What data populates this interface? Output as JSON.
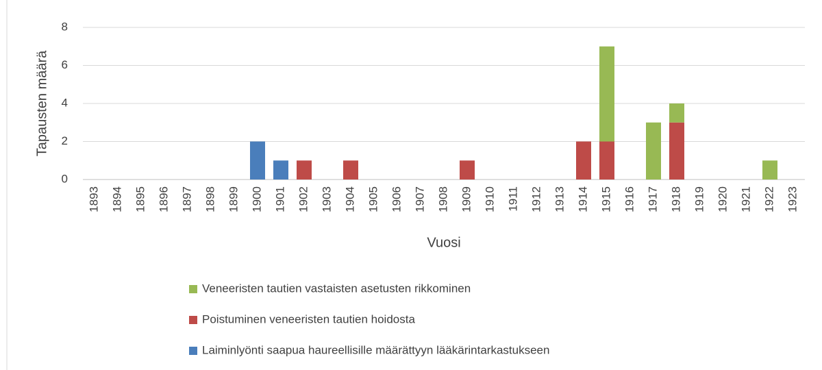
{
  "chart_data": {
    "type": "stacked_bar",
    "xlabel": "Vuosi",
    "ylabel": "Tapausten määrä",
    "categories": [
      "1893",
      "1894",
      "1895",
      "1896",
      "1897",
      "1898",
      "1899",
      "1900",
      "1901",
      "1902",
      "1903",
      "1904",
      "1905",
      "1906",
      "1907",
      "1908",
      "1909",
      "1910",
      "1911",
      "1912",
      "1913",
      "1914",
      "1915",
      "1916",
      "1917",
      "1918",
      "1919",
      "1920",
      "1921",
      "1922",
      "1923"
    ],
    "series": [
      {
        "name": "Laiminlyönti saapua haureellisille määrättyyn lääkärintarkastukseen",
        "color": "#4a7ebb",
        "values": [
          0,
          0,
          0,
          0,
          0,
          0,
          0,
          2,
          1,
          0,
          0,
          0,
          0,
          0,
          0,
          0,
          0,
          0,
          0,
          0,
          0,
          0,
          0,
          0,
          0,
          0,
          0,
          0,
          0,
          0,
          0
        ]
      },
      {
        "name": "Poistuminen veneeristen tautien hoidosta",
        "color": "#be4b48",
        "values": [
          0,
          0,
          0,
          0,
          0,
          0,
          0,
          0,
          0,
          1,
          0,
          1,
          0,
          0,
          0,
          0,
          1,
          0,
          0,
          0,
          0,
          2,
          2,
          0,
          0,
          3,
          0,
          0,
          0,
          0,
          0
        ]
      },
      {
        "name": "Veneeristen tautien vastaisten asetusten rikkominen",
        "color": "#98b954",
        "values": [
          0,
          0,
          0,
          0,
          0,
          0,
          0,
          0,
          0,
          0,
          0,
          0,
          0,
          0,
          0,
          0,
          0,
          0,
          0,
          0,
          0,
          0,
          5,
          0,
          3,
          1,
          0,
          0,
          0,
          1,
          0
        ]
      }
    ],
    "ylim": [
      0,
      8
    ],
    "yticks": [
      0,
      2,
      4,
      6,
      8
    ],
    "grid": true
  }
}
